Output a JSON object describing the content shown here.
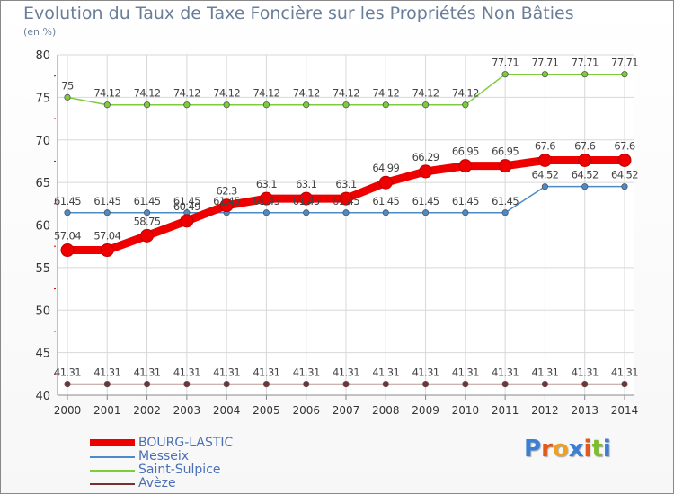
{
  "header": {
    "title": "Evolution du Taux de Taxe Foncière sur les Propriétés Non Bâties",
    "subtitle": "(en %)"
  },
  "logo_text": "Proxiti",
  "chart_data": {
    "type": "line",
    "title": "Evolution du Taux de Taxe Foncière sur les Propriétés Non Bâties",
    "ylabel": "(en %)",
    "xlabel": "",
    "x": [
      "2000",
      "2001",
      "2002",
      "2003",
      "2004",
      "2005",
      "2006",
      "2007",
      "2008",
      "2009",
      "2010",
      "2011",
      "2012",
      "2013",
      "2014"
    ],
    "ylim": [
      40,
      80
    ],
    "yticks": [
      40,
      45,
      50,
      55,
      60,
      65,
      70,
      75,
      80
    ],
    "grid": true,
    "legend_position": "bottom-left",
    "series": [
      {
        "name": "BOURG-LASTIC",
        "color": "#ee0000",
        "values": [
          57.04,
          57.04,
          58.75,
          60.49,
          62.3,
          63.1,
          63.1,
          63.1,
          64.99,
          66.29,
          66.95,
          66.95,
          67.6,
          67.6,
          67.6
        ],
        "labels": [
          "57.04",
          "57.04",
          "58.75",
          "60.49",
          "62.3",
          "63.1",
          "63.1",
          "63.1",
          "64.99",
          "66.29",
          "66.95",
          "66.95",
          "67.6",
          "67.6",
          "67.6"
        ]
      },
      {
        "name": "Messeix",
        "color": "#4a8bc8",
        "values": [
          61.45,
          61.45,
          61.45,
          61.45,
          61.45,
          61.45,
          61.45,
          61.45,
          61.45,
          61.45,
          61.45,
          61.45,
          64.52,
          64.52,
          64.52
        ],
        "labels": [
          "61.45",
          "61.45",
          "61.45",
          "61.45",
          "61.45",
          "61.45",
          "61.45",
          "61.45",
          "61.45",
          "61.45",
          "61.45",
          "61.45",
          "64.52",
          "64.52",
          "64.52"
        ]
      },
      {
        "name": "Saint-Sulpice",
        "color": "#7ccc3c",
        "values": [
          75,
          74.12,
          74.12,
          74.12,
          74.12,
          74.12,
          74.12,
          74.12,
          74.12,
          74.12,
          74.12,
          77.71,
          77.71,
          77.71,
          77.71
        ],
        "labels": [
          "75",
          "74.12",
          "74.12",
          "74.12",
          "74.12",
          "74.12",
          "74.12",
          "74.12",
          "74.12",
          "74.12",
          "74.12",
          "77.71",
          "77.71",
          "77.71",
          "77.71"
        ]
      },
      {
        "name": "Avèze",
        "color": "#7a3030",
        "values": [
          41.31,
          41.31,
          41.31,
          41.31,
          41.31,
          41.31,
          41.31,
          41.31,
          41.31,
          41.31,
          41.31,
          41.31,
          41.31,
          41.31,
          41.31
        ],
        "labels": [
          "41.31",
          "41.31",
          "41.31",
          "41.31",
          "41.31",
          "41.31",
          "41.31",
          "41.31",
          "41.31",
          "41.31",
          "41.31",
          "41.31",
          "41.31",
          "41.31",
          "41.31"
        ]
      }
    ]
  }
}
